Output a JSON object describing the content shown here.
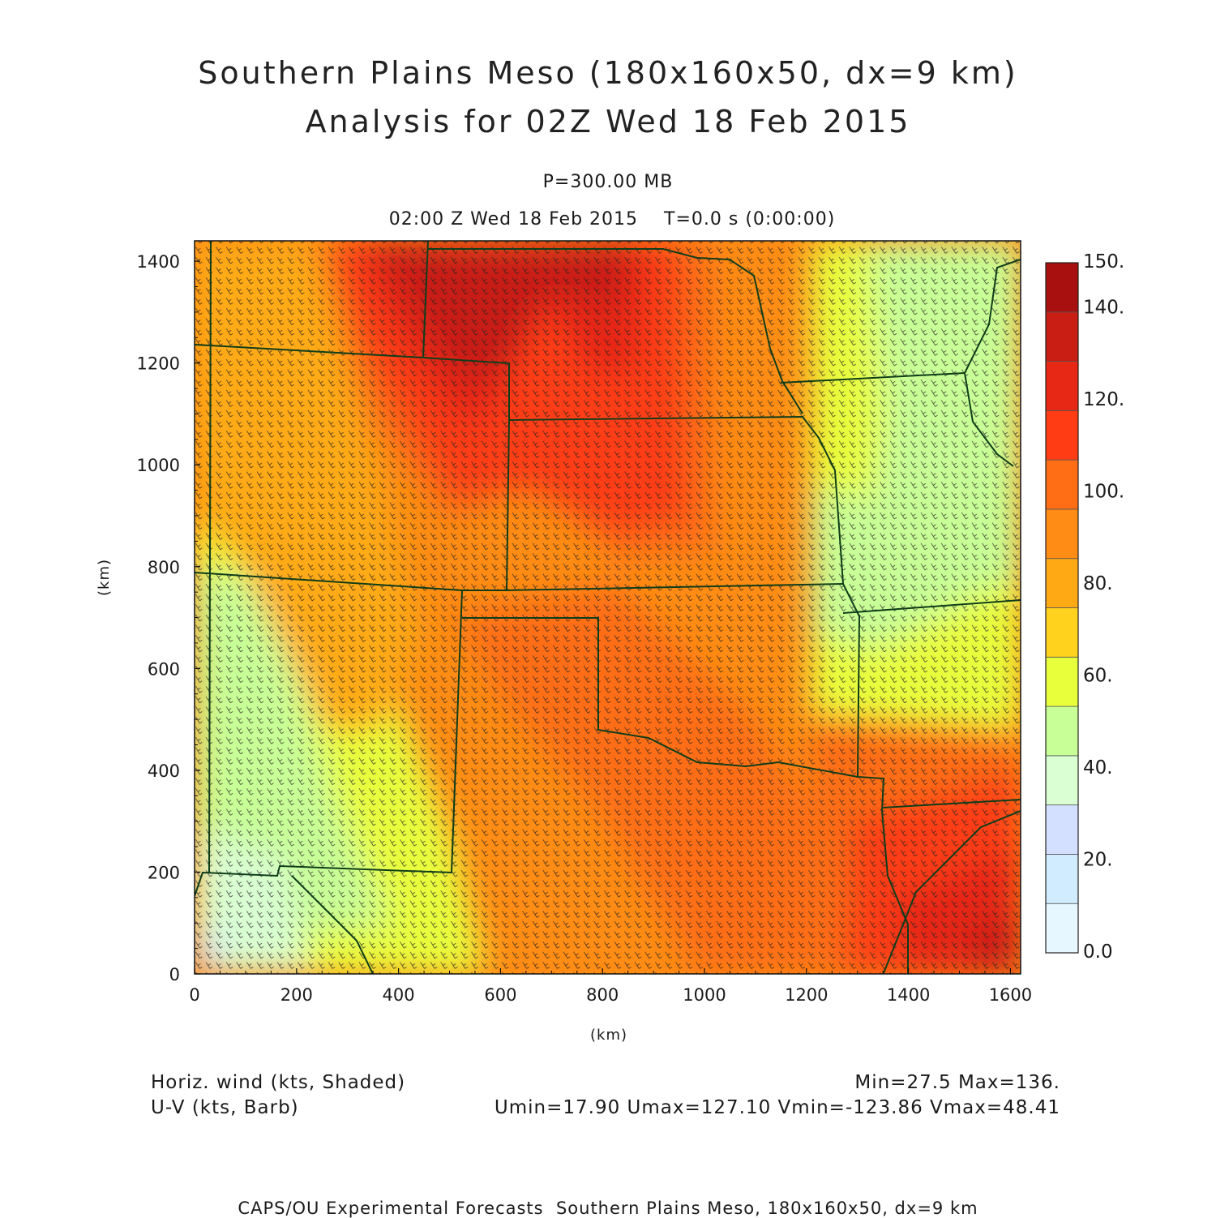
{
  "title": {
    "line1": "Southern Plains Meso (180x160x50, dx=9 km)",
    "line2": "Analysis for 02Z Wed 18 Feb 2015"
  },
  "level_label": "P=300.00 MB",
  "valid_time": "02:00 Z Wed 18 Feb 2015    T=0.0 s (0:00:00)",
  "axes": {
    "x_label": "(km)",
    "y_label": "(km)",
    "x_ticks": [
      "0",
      "200",
      "400",
      "600",
      "800",
      "1000",
      "1200",
      "1400",
      "1600"
    ],
    "y_ticks": [
      "0",
      "200",
      "400",
      "600",
      "800",
      "1000",
      "1200",
      "1400"
    ]
  },
  "colorbar": {
    "labels": [
      "0.0",
      "20.",
      "40.",
      "60.",
      "80.",
      "100.",
      "120.",
      "140.",
      "150."
    ],
    "colors": [
      "#e6f7ff",
      "#d2ecff",
      "#d3e0ff",
      "#d9ffd2",
      "#c8ff96",
      "#e8ff3c",
      "#ffd21e",
      "#ffaa14",
      "#ff8c14",
      "#ff6e14",
      "#ff3c14",
      "#e62814",
      "#c81e14",
      "#a80f0f"
    ]
  },
  "field_info": {
    "shaded": "Horiz. wind (kts, Shaded)",
    "barbs": "U-V (kts, Barb)",
    "minmax": "Min=27.5 Max=136.",
    "uv_stats": "Umin=17.90 Umax=127.10 Vmin=-123.86 Vmax=48.41"
  },
  "footer": "CAPS/OU Experimental Forecasts  Southern Plains Meso, 180x160x50, dx=9 km",
  "chart_data": {
    "type": "heatmap",
    "title": "Southern Plains Meso (180x160x50, dx=9 km)",
    "subtitle": "Analysis for 02Z Wed 18 Feb 2015",
    "xlabel": "(km)",
    "ylabel": "(km)",
    "xlim": [
      0,
      1620
    ],
    "ylim": [
      0,
      1440
    ],
    "colorbar_range": [
      0,
      150
    ],
    "field": "Horiz. wind (kts, Shaded)",
    "min": 27.5,
    "max": 136
  }
}
